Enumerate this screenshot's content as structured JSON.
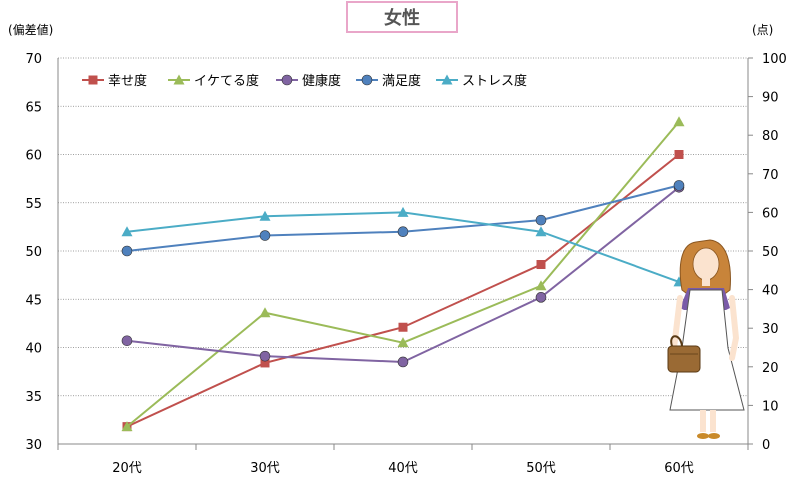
{
  "title": "女性",
  "chart_data": {
    "type": "line",
    "title": "女性",
    "ylabel_left": "(偏差値)",
    "ylabel_right": "(点)",
    "categories": [
      "20代",
      "30代",
      "40代",
      "50代",
      "60代"
    ],
    "y_left": {
      "lim": [
        30,
        70
      ],
      "ticks": [
        30,
        35,
        40,
        45,
        50,
        55,
        60,
        65,
        70
      ]
    },
    "y_right": {
      "lim": [
        0,
        100
      ],
      "ticks": [
        0,
        10,
        20,
        30,
        40,
        50,
        60,
        70,
        80,
        90,
        100
      ]
    },
    "grid": true,
    "legend_position": "top-left",
    "series": [
      {
        "name": "幸せ度",
        "axis": "left",
        "color": "#c0504d",
        "marker": "square",
        "values": [
          31.8,
          38.4,
          42.1,
          48.6,
          60.0
        ]
      },
      {
        "name": "イケてる度",
        "axis": "left",
        "color": "#9bbb59",
        "marker": "triangle",
        "values": [
          31.8,
          43.6,
          40.5,
          46.4,
          63.4
        ]
      },
      {
        "name": "健康度",
        "axis": "left",
        "color": "#8064a2",
        "marker": "circle",
        "values": [
          40.7,
          39.1,
          38.5,
          45.2,
          56.6
        ]
      },
      {
        "name": "満足度",
        "axis": "right",
        "color": "#4f81bd",
        "marker": "circle",
        "values": [
          50,
          54,
          55,
          58,
          67
        ]
      },
      {
        "name": "ストレス度",
        "axis": "right",
        "color": "#4bacc6",
        "marker": "triangle",
        "values": [
          55,
          59,
          60,
          55,
          42
        ]
      }
    ]
  }
}
